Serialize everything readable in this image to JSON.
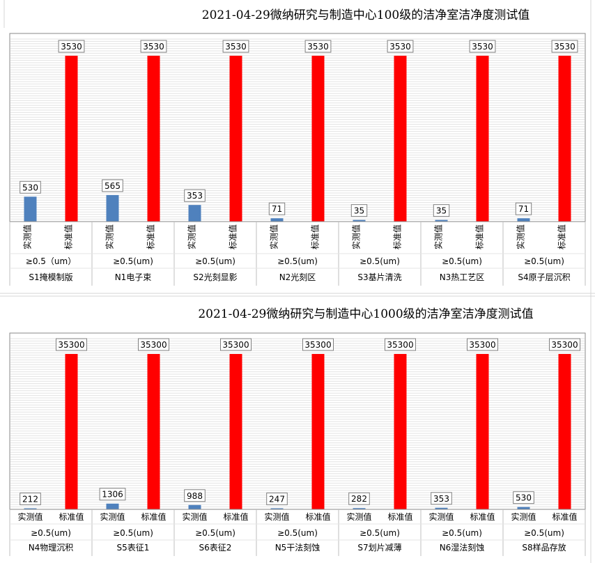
{
  "chart_data": [
    {
      "type": "bar",
      "title": "2021-04-29微纳研究与制造中心100级的洁净室洁净度测试值",
      "series_labels": [
        "实测值",
        "标准值"
      ],
      "groups": [
        {
          "area": "S1掩模制版",
          "size": "≥0.5（um）",
          "measured": 530,
          "standard": 3530
        },
        {
          "area": "N1电子束",
          "size": "≥0.5(um)",
          "measured": 565,
          "standard": 3530
        },
        {
          "area": "S2光刻显影",
          "size": "≥0.5(um)",
          "measured": 353,
          "standard": 3530
        },
        {
          "area": "N2光刻区",
          "size": "≥0.5(um)",
          "measured": 71,
          "standard": 3530
        },
        {
          "area": "S3基片清洗",
          "size": "≥0.5(um)",
          "measured": 35,
          "standard": 3530
        },
        {
          "area": "N3热工艺区",
          "size": "≥0.5(um)",
          "measured": 35,
          "standard": 3530
        },
        {
          "area": "S4原子层沉积",
          "size": "≥0.5(um)",
          "measured": 71,
          "standard": 3530
        }
      ],
      "ylim": [
        0,
        3530
      ],
      "colors": {
        "measured": "#4f81bd",
        "standard": "#ff0000"
      }
    },
    {
      "type": "bar",
      "title": "2021-04-29微纳研究与制造中心1000级的洁净室洁净度测试值",
      "series_labels": [
        "实测值",
        "标准值"
      ],
      "groups": [
        {
          "area": "N4物理沉积",
          "size": "≥0.5(um)",
          "measured": 212,
          "standard": 35300
        },
        {
          "area": "S5表征1",
          "size": "≥0.5(um)",
          "measured": 1306,
          "standard": 35300
        },
        {
          "area": "S6表征2",
          "size": "≥0.5(um)",
          "measured": 988,
          "standard": 35300
        },
        {
          "area": "N5干法刻蚀",
          "size": "≥0.5(um)",
          "measured": 247,
          "standard": 35300
        },
        {
          "area": "S7划片减薄",
          "size": "≥0.5(um)",
          "measured": 282,
          "standard": 35300
        },
        {
          "area": "N6湿法刻蚀",
          "size": "≥0.5(um)",
          "measured": 353,
          "standard": 35300
        },
        {
          "area": "S8样品存放",
          "size": "≥0.5(um)",
          "measured": 530,
          "standard": 35300
        }
      ],
      "ylim": [
        0,
        35300
      ],
      "colors": {
        "measured": "#4f81bd",
        "standard": "#ff0000"
      }
    }
  ]
}
